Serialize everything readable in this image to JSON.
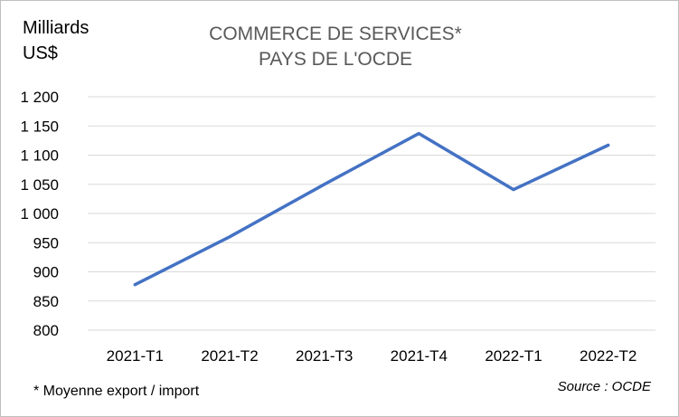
{
  "chart_data": {
    "type": "line",
    "title": "COMMERCE DE SERVICES*",
    "subtitle": "PAYS DE L'OCDE",
    "ylabel_lines": [
      "Milliards",
      "US$"
    ],
    "categories": [
      "2021-T1",
      "2021-T2",
      "2021-T3",
      "2021-T4",
      "2022-T1",
      "2022-T2"
    ],
    "series": [
      {
        "values": [
          878,
          960,
          1050,
          1137,
          1041,
          1117
        ],
        "color": "#4472c4"
      }
    ],
    "ylim": [
      800,
      1200
    ],
    "yticks": [
      800,
      850,
      900,
      950,
      1000,
      1050,
      1100,
      1150,
      1200
    ],
    "ytick_labels": [
      "800",
      "850",
      "900",
      "950",
      "1 000",
      "1 050",
      "1 100",
      "1 150",
      "1 200"
    ],
    "grid": true,
    "gridline_color": "#d9d9d9",
    "footnote": "* Moyenne export / import",
    "source": "Source : OCDE"
  }
}
